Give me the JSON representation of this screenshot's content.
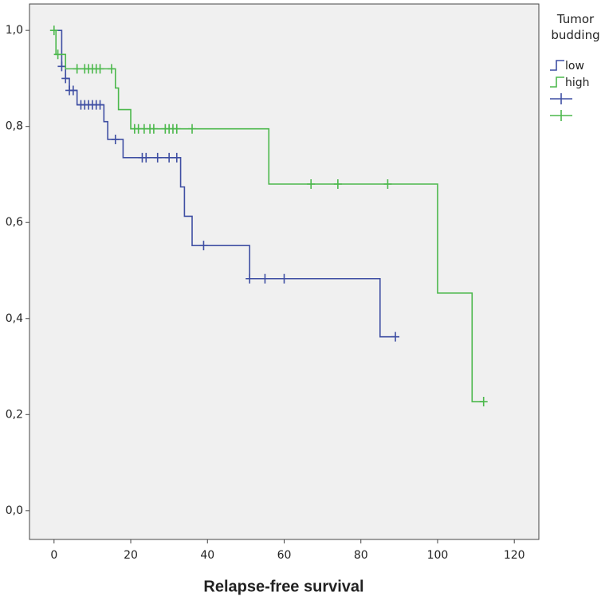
{
  "chart_data": {
    "type": "survival",
    "x_label": "Relapse-free survival",
    "legend_title": "Tumor budding",
    "xlim": [
      -6.4,
      126.4
    ],
    "ylim": [
      -0.06,
      1.055
    ],
    "xticks": [
      0,
      20,
      40,
      60,
      80,
      100,
      120
    ],
    "yticks": [
      {
        "value": 0,
        "label": "0,0"
      },
      {
        "value": 0.2,
        "label": "0,2"
      },
      {
        "value": 0.4,
        "label": "0,4"
      },
      {
        "value": 0.6,
        "label": "0,6"
      },
      {
        "value": 0.8,
        "label": "0,8"
      },
      {
        "value": 1,
        "label": "1,0"
      }
    ],
    "series": [
      {
        "name": "low",
        "color": "#3f4fa3",
        "x": [
          0,
          2,
          3,
          4,
          6,
          13,
          14,
          18,
          33,
          34,
          36,
          51,
          85
        ],
        "values": [
          1.0,
          0.925,
          0.9,
          0.875,
          0.845,
          0.81,
          0.773,
          0.735,
          0.674,
          0.613,
          0.552,
          0.483,
          0.362
        ],
        "censored": {
          "x": [
            2,
            3,
            4,
            5,
            7,
            8,
            9,
            10,
            11,
            12,
            16,
            23,
            24,
            27,
            30,
            32,
            39,
            51,
            55,
            60,
            89
          ],
          "values": [
            0.925,
            0.9,
            0.875,
            0.875,
            0.845,
            0.845,
            0.845,
            0.845,
            0.845,
            0.845,
            0.773,
            0.735,
            0.735,
            0.735,
            0.735,
            0.735,
            0.552,
            0.483,
            0.483,
            0.483,
            0.362
          ]
        }
      },
      {
        "name": "high",
        "color": "#4cb84c",
        "x": [
          0,
          0.5,
          3,
          16,
          16.8,
          20,
          56,
          100,
          109
        ],
        "values": [
          1.0,
          0.95,
          0.92,
          0.88,
          0.835,
          0.795,
          0.68,
          0.453,
          0.227
        ],
        "censored": {
          "x": [
            0,
            1,
            6,
            8,
            9,
            10,
            11,
            12,
            15,
            21,
            22,
            23.5,
            25,
            26,
            29,
            30,
            31,
            32,
            36,
            67,
            74,
            87,
            112
          ],
          "values": [
            1.0,
            0.95,
            0.92,
            0.92,
            0.92,
            0.92,
            0.92,
            0.92,
            0.92,
            0.795,
            0.795,
            0.795,
            0.795,
            0.795,
            0.795,
            0.795,
            0.795,
            0.795,
            0.795,
            0.68,
            0.68,
            0.68,
            0.227
          ]
        }
      }
    ]
  }
}
